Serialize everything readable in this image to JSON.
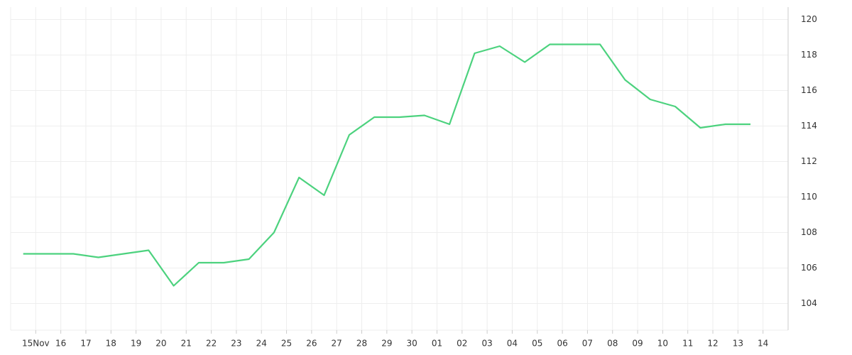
{
  "chart_data": {
    "type": "line",
    "categories": [
      "15Nov",
      "16",
      "17",
      "18",
      "19",
      "20",
      "21",
      "22",
      "23",
      "24",
      "25",
      "26",
      "27",
      "28",
      "29",
      "30",
      "01",
      "02",
      "03",
      "04",
      "05",
      "06",
      "07",
      "08",
      "09",
      "10",
      "11",
      "12",
      "13",
      "14"
    ],
    "series": [
      {
        "color": "#4cd27e",
        "values": [
          106.8,
          106.8,
          106.8,
          106.6,
          106.8,
          107.0,
          105.0,
          106.3,
          106.3,
          106.5,
          108.0,
          111.1,
          110.1,
          113.5,
          114.5,
          114.5,
          114.6,
          114.1,
          118.1,
          118.5,
          117.6,
          118.6,
          118.6,
          118.6,
          116.6,
          115.5,
          115.1,
          113.9,
          114.1,
          114.1
        ]
      }
    ],
    "ylim": [
      102.5,
      120.7
    ],
    "yticks": [
      104,
      106,
      108,
      110,
      112,
      114,
      116,
      118,
      120
    ],
    "grid": true,
    "y_axis_side": "right"
  }
}
